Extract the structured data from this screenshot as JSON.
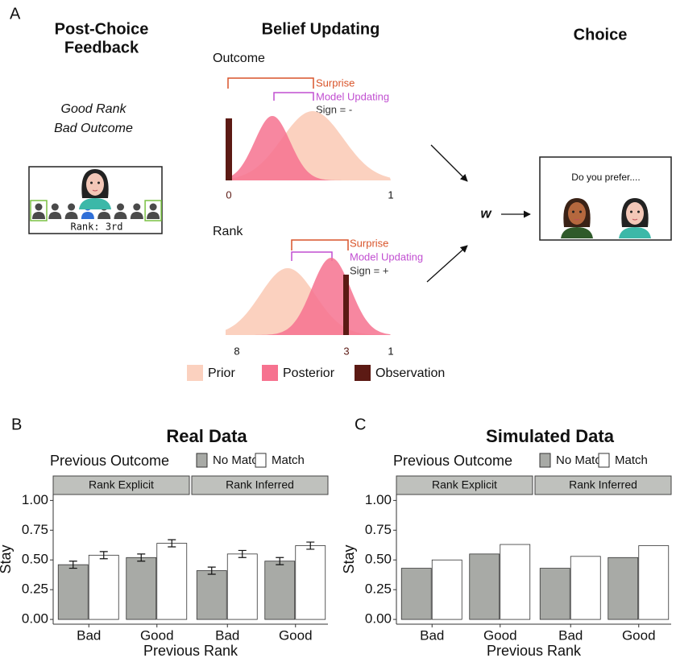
{
  "panel_a": {
    "label": "A",
    "feedback_title": [
      "Post-Choice",
      "Feedback"
    ],
    "condition": [
      "Good Rank",
      "Bad Outcome"
    ],
    "rank_text": "Rank: 3rd",
    "belief_title": "Belief Updating",
    "outcome": {
      "title": "Outcome",
      "surprise": "Surprise",
      "model_updating": "Model Updating",
      "sign": "Sign = -",
      "axis": [
        "0",
        "1"
      ]
    },
    "rank": {
      "title": "Rank",
      "surprise": "Surprise",
      "model_updating": "Model Updating",
      "sign": "Sign = +",
      "axis": [
        "8",
        "3",
        "1"
      ]
    },
    "legend": [
      "Prior",
      "Posterior",
      "Observation"
    ],
    "weight": "w",
    "choice_title": "Choice",
    "choice_prompt": "Do you prefer...."
  },
  "chart_data": [
    {
      "type": "bar",
      "panel_label": "B",
      "title": "Real Data",
      "legend_title": "Previous Outcome",
      "legend": [
        {
          "name": "No Match",
          "color": "#a8aaa6"
        },
        {
          "name": "Match",
          "color": "#ffffff"
        }
      ],
      "categories": [
        "Bad",
        "Good"
      ],
      "xlabel": "Previous Rank",
      "ylabel": "Stay",
      "facets": [
        {
          "title": "Rank Explicit",
          "series": [
            {
              "values": [
                0.46,
                0.52
              ],
              "errors": [
                0.03,
                0.03
              ]
            },
            {
              "values": [
                0.54,
                0.64
              ],
              "errors": [
                0.03,
                0.03
              ]
            }
          ]
        },
        {
          "title": "Rank Inferred",
          "series": [
            {
              "values": [
                0.41,
                0.49
              ],
              "errors": [
                0.03,
                0.03
              ]
            },
            {
              "values": [
                0.55,
                0.62
              ],
              "errors": [
                0.03,
                0.03
              ]
            }
          ]
        }
      ],
      "ylim": [
        -0.04,
        1.05
      ],
      "yticks": [
        {
          "value": 0,
          "label": "0.00"
        },
        {
          "value": 0.25,
          "label": "0.25"
        },
        {
          "value": 0.5,
          "label": "0.50"
        },
        {
          "value": 0.75,
          "label": "0.75"
        },
        {
          "value": 1,
          "label": "1.00"
        }
      ]
    },
    {
      "type": "bar",
      "panel_label": "C",
      "title": "Simulated Data",
      "legend_title": "Previous Outcome",
      "legend": [
        {
          "name": "No Match",
          "color": "#a8aaa6"
        },
        {
          "name": "Match",
          "color": "#ffffff"
        }
      ],
      "categories": [
        "Bad",
        "Good"
      ],
      "xlabel": "Previous Rank",
      "ylabel": "Stay",
      "facets": [
        {
          "title": "Rank Explicit",
          "series": [
            {
              "values": [
                0.43,
                0.55
              ]
            },
            {
              "values": [
                0.5,
                0.63
              ]
            }
          ]
        },
        {
          "title": "Rank Inferred",
          "series": [
            {
              "values": [
                0.43,
                0.52
              ]
            },
            {
              "values": [
                0.53,
                0.62
              ]
            }
          ]
        }
      ],
      "ylim": [
        -0.04,
        1.05
      ],
      "yticks": [
        {
          "value": 0,
          "label": "0.00"
        },
        {
          "value": 0.25,
          "label": "0.25"
        },
        {
          "value": 0.5,
          "label": "0.50"
        },
        {
          "value": 0.75,
          "label": "0.75"
        },
        {
          "value": 1,
          "label": "1.00"
        }
      ]
    }
  ]
}
